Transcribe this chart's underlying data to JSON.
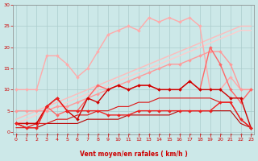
{
  "xlabel": "Vent moyen/en rafales ( km/h )",
  "bg_color": "#cce8e8",
  "grid_color": "#aacccc",
  "xlim": [
    -0.3,
    23.3
  ],
  "ylim": [
    -0.5,
    30
  ],
  "yticks": [
    0,
    5,
    10,
    15,
    20,
    25,
    30
  ],
  "xticks": [
    0,
    1,
    2,
    3,
    4,
    5,
    6,
    7,
    8,
    9,
    10,
    11,
    12,
    13,
    14,
    15,
    16,
    17,
    18,
    19,
    20,
    21,
    22,
    23
  ],
  "lines": [
    {
      "x": [
        0,
        1,
        2,
        3,
        4,
        5,
        6,
        7,
        8,
        9,
        10,
        11,
        12,
        13,
        14,
        15,
        16,
        17,
        18,
        19,
        20,
        21,
        22,
        23
      ],
      "y": [
        10,
        10,
        10,
        18,
        18,
        16,
        13,
        15,
        19,
        23,
        24,
        25,
        24,
        27,
        26,
        27,
        26,
        27,
        25,
        10,
        10,
        13,
        10,
        10
      ],
      "color": "#ffaaaa",
      "lw": 1.0,
      "marker": "D",
      "ms": 2.0
    },
    {
      "x": [
        0,
        1,
        2,
        3,
        4,
        5,
        6,
        7,
        8,
        9,
        10,
        11,
        12,
        13,
        14,
        15,
        16,
        17,
        18,
        19,
        20,
        21,
        22,
        23
      ],
      "y": [
        3,
        4,
        5,
        6,
        7,
        8,
        9,
        10,
        11,
        12,
        13,
        14,
        15,
        16,
        17,
        18,
        19,
        20,
        21,
        22,
        23,
        24,
        25,
        25
      ],
      "color": "#ffbbbb",
      "lw": 1.0,
      "marker": null,
      "ms": 0
    },
    {
      "x": [
        0,
        1,
        2,
        3,
        4,
        5,
        6,
        7,
        8,
        9,
        10,
        11,
        12,
        13,
        14,
        15,
        16,
        17,
        18,
        19,
        20,
        21,
        22,
        23
      ],
      "y": [
        2,
        3,
        4,
        5,
        6,
        7,
        8,
        9,
        10,
        11,
        12,
        13,
        14,
        15,
        16,
        17,
        18,
        19,
        20,
        21,
        22,
        23,
        24,
        24
      ],
      "color": "#ffcccc",
      "lw": 1.0,
      "marker": null,
      "ms": 0
    },
    {
      "x": [
        0,
        1,
        2,
        3,
        4,
        5,
        6,
        7,
        8,
        9,
        10,
        11,
        12,
        13,
        14,
        15,
        16,
        17,
        18,
        19,
        20,
        21,
        22,
        23
      ],
      "y": [
        5,
        5,
        5,
        5,
        6,
        6,
        7,
        8,
        9,
        10,
        11,
        12,
        13,
        14,
        15,
        16,
        16,
        17,
        18,
        19,
        19,
        16,
        10,
        10
      ],
      "color": "#ff9999",
      "lw": 1.0,
      "marker": "D",
      "ms": 2.0
    },
    {
      "x": [
        0,
        1,
        2,
        3,
        4,
        5,
        6,
        7,
        8,
        9,
        10,
        11,
        12,
        13,
        14,
        15,
        16,
        17,
        18,
        19,
        20,
        21,
        22,
        23
      ],
      "y": [
        2,
        2,
        2,
        6,
        4,
        5,
        5,
        8,
        11,
        10,
        11,
        10,
        11,
        11,
        10,
        10,
        10,
        12,
        10,
        20,
        16,
        10,
        7,
        10
      ],
      "color": "#ff6666",
      "lw": 1.0,
      "marker": "D",
      "ms": 2.0
    },
    {
      "x": [
        0,
        1,
        2,
        3,
        4,
        5,
        6,
        7,
        8,
        9,
        10,
        11,
        12,
        13,
        14,
        15,
        16,
        17,
        18,
        19,
        20,
        21,
        22,
        23
      ],
      "y": [
        2,
        2,
        2,
        6,
        8,
        5,
        3,
        8,
        7,
        10,
        11,
        10,
        11,
        11,
        10,
        10,
        10,
        12,
        10,
        10,
        10,
        8,
        8,
        1
      ],
      "color": "#cc0000",
      "lw": 1.0,
      "marker": "D",
      "ms": 2.0
    },
    {
      "x": [
        0,
        1,
        2,
        3,
        4,
        5,
        6,
        7,
        8,
        9,
        10,
        11,
        12,
        13,
        14,
        15,
        16,
        17,
        18,
        19,
        20,
        21,
        22,
        23
      ],
      "y": [
        2,
        1,
        1,
        6,
        8,
        5,
        5,
        5,
        5,
        4,
        4,
        4,
        5,
        5,
        5,
        5,
        5,
        5,
        5,
        5,
        7,
        7,
        3,
        1
      ],
      "color": "#ee2222",
      "lw": 1.0,
      "marker": "D",
      "ms": 2.0
    },
    {
      "x": [
        0,
        1,
        2,
        3,
        4,
        5,
        6,
        7,
        8,
        9,
        10,
        11,
        12,
        13,
        14,
        15,
        16,
        17,
        18,
        19,
        20,
        21,
        22,
        23
      ],
      "y": [
        2,
        1,
        1,
        2,
        2,
        2,
        2,
        3,
        3,
        3,
        3,
        4,
        4,
        4,
        4,
        4,
        5,
        5,
        5,
        5,
        5,
        5,
        2,
        1
      ],
      "color": "#bb0000",
      "lw": 0.8,
      "marker": null,
      "ms": 0
    },
    {
      "x": [
        0,
        1,
        2,
        3,
        4,
        5,
        6,
        7,
        8,
        9,
        10,
        11,
        12,
        13,
        14,
        15,
        16,
        17,
        18,
        19,
        20,
        21,
        22,
        23
      ],
      "y": [
        1,
        1,
        2,
        2,
        3,
        3,
        4,
        4,
        5,
        5,
        6,
        6,
        7,
        7,
        8,
        8,
        8,
        8,
        8,
        8,
        7,
        7,
        3,
        1
      ],
      "color": "#dd1111",
      "lw": 0.8,
      "marker": null,
      "ms": 0
    }
  ],
  "tick_color": "#cc0000",
  "tick_fontsize": 4.5,
  "xlabel_fontsize": 5.5,
  "xlabel_color": "#cc0000",
  "xlabel_fontweight": "bold"
}
